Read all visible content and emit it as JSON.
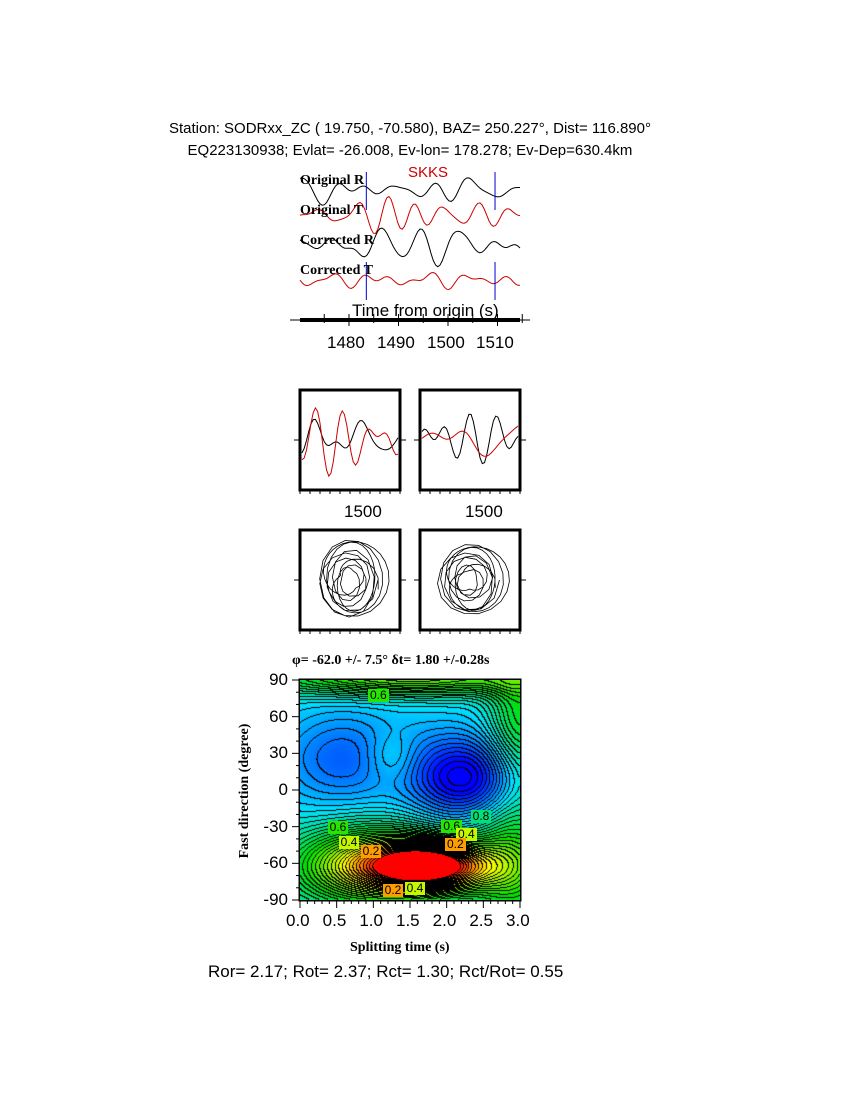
{
  "header": {
    "line1": "Station: SODRxx_ZC (  19.750,  -70.580), BAZ=  250.227°, Dist=  116.890°",
    "line2": "EQ223130938; Evlat= -26.008, Ev-lon= 178.278; Ev-Dep=630.4km"
  },
  "traces": {
    "phase": "SKKS",
    "labels": [
      "Original R",
      "Original T",
      "Corrected R",
      "Corrected T"
    ],
    "xlabel": "Time from origin (s)",
    "ticks": [
      "1480",
      "1490",
      "1500",
      "1510"
    ],
    "window_start_s": 1483.5,
    "window_end_s": 1509.5,
    "colors": {
      "radial": "#000000",
      "transverse": "#cc0000",
      "window": "#0000cc"
    }
  },
  "waveform_panels": {
    "tick_labels": [
      "1500",
      "1500"
    ]
  },
  "chart_data": {
    "type": "heatmap",
    "title": "φ= -62.0 +/- 7.5° δt= 1.80 +/-0.28s",
    "xlabel": "Splitting time (s)",
    "ylabel": "Fast direction (degree)",
    "xlim": [
      0,
      3
    ],
    "ylim": [
      -90,
      90
    ],
    "xticks": [
      "0.0",
      "0.5",
      "1.0",
      "1.5",
      "2.0",
      "2.5",
      "3.0"
    ],
    "yticks": [
      "90",
      "60",
      "30",
      "0",
      "-30",
      "-60",
      "-90"
    ],
    "best_fit": {
      "phi": -62.0,
      "dt": 1.8,
      "marker": "star"
    },
    "contour_labels": [
      {
        "text": "0.6",
        "x": 1.05,
        "y": 77
      },
      {
        "text": "0.8",
        "x": 2.45,
        "y": -22
      },
      {
        "text": "0.6",
        "x": 2.05,
        "y": -30
      },
      {
        "text": "0.4",
        "x": 2.25,
        "y": -37
      },
      {
        "text": "0.2",
        "x": 2.1,
        "y": -45
      },
      {
        "text": "0.6",
        "x": 0.5,
        "y": -31
      },
      {
        "text": "0.4",
        "x": 0.65,
        "y": -43
      },
      {
        "text": "0.2",
        "x": 0.95,
        "y": -51
      },
      {
        "text": "0.2",
        "x": 1.25,
        "y": -83
      },
      {
        "text": "0.4",
        "x": 1.55,
        "y": -81
      }
    ],
    "colormap": [
      "#ff0000",
      "#ffff00",
      "#00e000",
      "#00e0ff",
      "#0000ff"
    ]
  },
  "footer": "Ror= 2.17; Rot= 2.37; Rct= 1.30; Rct/Rot= 0.55"
}
